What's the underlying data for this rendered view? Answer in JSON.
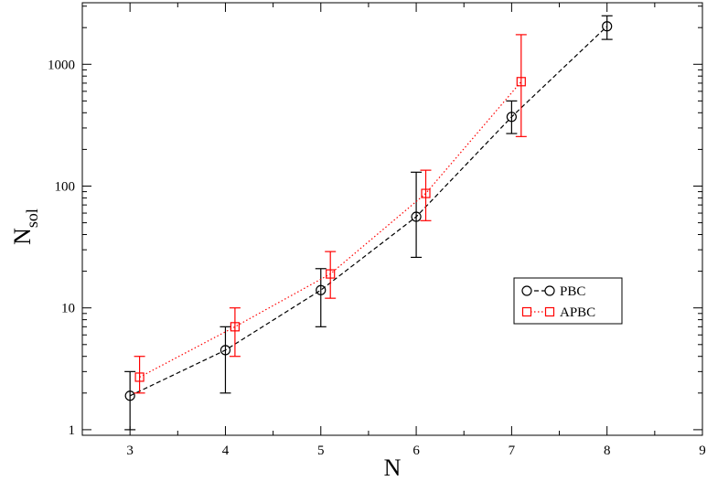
{
  "chart_data": {
    "type": "line",
    "xlabel": "N",
    "ylabel_main": "N",
    "ylabel_sub": "sol",
    "xlim": [
      2.5,
      9
    ],
    "ylim": [
      0.9,
      3200
    ],
    "yscale": "log",
    "x_ticks": [
      3,
      4,
      5,
      6,
      7,
      8,
      9
    ],
    "y_ticks": [
      1,
      10,
      100,
      1000
    ],
    "y_tick_labels": [
      "1",
      "10",
      "100",
      "1000"
    ],
    "grid": false,
    "legend_position": "right-middle",
    "series": [
      {
        "name": "PBC",
        "color": "#000000",
        "marker": "circle",
        "line_style": "dashed",
        "x": [
          3,
          4,
          5,
          6,
          7,
          8
        ],
        "y": [
          1.9,
          4.5,
          14,
          56,
          370,
          2050
        ],
        "y_low": [
          1,
          2,
          7,
          26,
          270,
          1600
        ],
        "y_high": [
          3,
          7,
          21,
          130,
          500,
          2500
        ]
      },
      {
        "name": "APBC",
        "color": "#ff0000",
        "marker": "square",
        "line_style": "dotted",
        "x": [
          3.1,
          4.1,
          5.1,
          6.1,
          7.1
        ],
        "y": [
          2.7,
          7,
          19,
          87,
          720
        ],
        "y_low": [
          2,
          4,
          12,
          52,
          255
        ],
        "y_high": [
          4,
          10,
          29,
          135,
          1750
        ]
      }
    ]
  }
}
